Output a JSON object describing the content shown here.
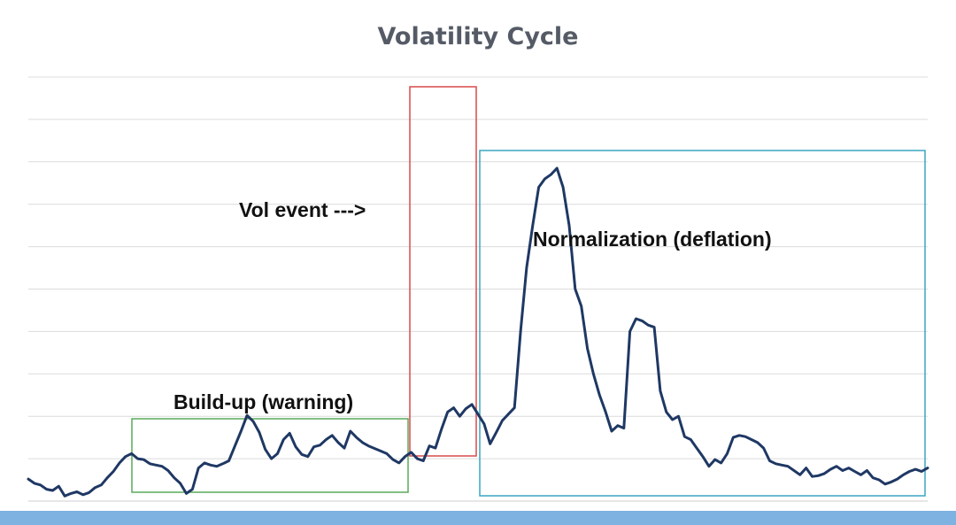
{
  "slide": {
    "title": "Volatility Cycle",
    "band_color": "#7eb2e0"
  },
  "chart_data": {
    "type": "line",
    "title": "Volatility Cycle",
    "xlabel": "",
    "ylabel": "",
    "grid": true,
    "ylim": [
      0,
      10
    ],
    "line_color": "#1f3864",
    "series": [
      {
        "values": [
          0.52,
          0.42,
          0.38,
          0.28,
          0.25,
          0.35,
          0.12,
          0.18,
          0.22,
          0.15,
          0.2,
          0.32,
          0.38,
          0.55,
          0.7,
          0.9,
          1.05,
          1.12,
          1.0,
          0.98,
          0.88,
          0.85,
          0.82,
          0.72,
          0.55,
          0.42,
          0.18,
          0.28,
          0.78,
          0.9,
          0.85,
          0.82,
          0.88,
          0.95,
          1.3,
          1.65,
          2.02,
          1.88,
          1.62,
          1.22,
          1.0,
          1.12,
          1.45,
          1.6,
          1.28,
          1.1,
          1.05,
          1.28,
          1.32,
          1.45,
          1.55,
          1.38,
          1.25,
          1.65,
          1.5,
          1.38,
          1.3,
          1.24,
          1.18,
          1.12,
          0.98,
          0.9,
          1.05,
          1.15,
          1.0,
          0.95,
          1.3,
          1.25,
          1.7,
          2.1,
          2.2,
          2.0,
          2.18,
          2.28,
          2.05,
          1.82,
          1.35,
          1.62,
          1.9,
          2.05,
          2.2,
          4.0,
          5.5,
          6.5,
          7.4,
          7.6,
          7.7,
          7.85,
          7.4,
          6.5,
          5.0,
          4.6,
          3.6,
          3.0,
          2.5,
          2.1,
          1.65,
          1.78,
          1.72,
          4.0,
          4.3,
          4.25,
          4.15,
          4.1,
          2.6,
          2.1,
          1.92,
          2.0,
          1.52,
          1.45,
          1.25,
          1.05,
          0.82,
          0.98,
          0.9,
          1.12,
          1.5,
          1.55,
          1.52,
          1.45,
          1.38,
          1.25,
          0.95,
          0.88,
          0.85,
          0.82,
          0.72,
          0.62,
          0.78,
          0.58,
          0.6,
          0.65,
          0.75,
          0.82,
          0.72,
          0.78,
          0.7,
          0.62,
          0.72,
          0.55,
          0.5,
          0.4,
          0.45,
          0.52,
          0.62,
          0.7,
          0.75,
          0.7,
          0.78
        ]
      }
    ],
    "annotations": [
      {
        "text": "Build-up (warning)",
        "box_color": "#5aaa5a"
      },
      {
        "text": "Vol event --->",
        "box_color": "#d94a4a"
      },
      {
        "text": "Normalization (deflation)",
        "box_color": "#3aa6c2"
      }
    ]
  }
}
